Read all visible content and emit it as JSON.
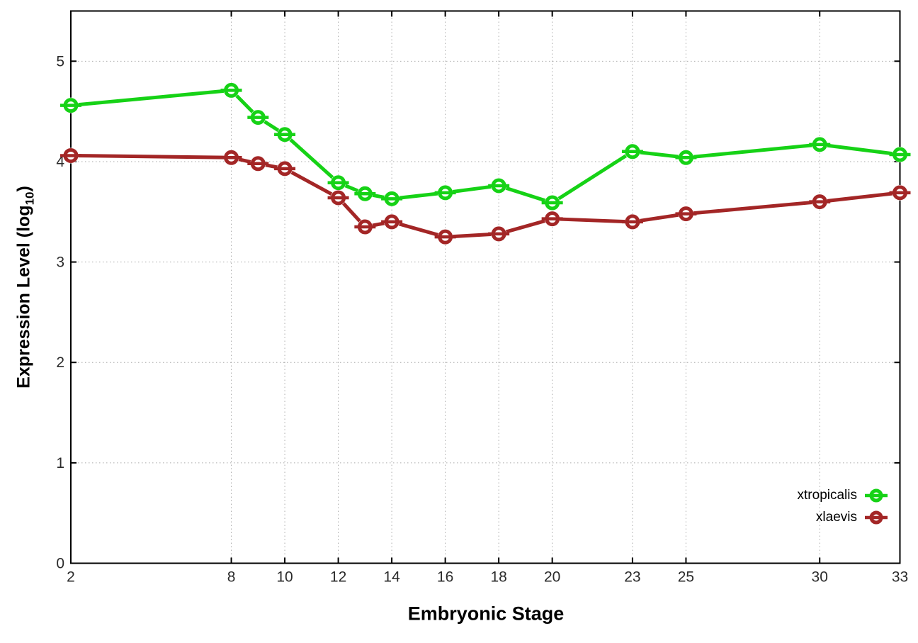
{
  "chart_data": {
    "type": "line",
    "title": "",
    "xlabel": "Embryonic Stage",
    "ylabel": "Expression Level (log10)",
    "ylabel_parts": {
      "prefix": "Expression Level (log",
      "sub": "10",
      "suffix": ")"
    },
    "x": [
      2,
      8,
      9,
      10,
      12,
      13,
      14,
      16,
      18,
      20,
      23,
      25,
      30,
      33
    ],
    "series": [
      {
        "name": "xtropicalis",
        "color": "#16d216",
        "values": [
          4.56,
          4.71,
          4.44,
          4.27,
          3.79,
          3.68,
          3.63,
          3.69,
          3.76,
          3.59,
          4.1,
          4.04,
          4.17,
          4.07
        ]
      },
      {
        "name": "xlaevis",
        "color": "#a32626",
        "values": [
          4.06,
          4.04,
          3.98,
          3.93,
          3.64,
          3.35,
          3.4,
          3.25,
          3.28,
          3.43,
          3.4,
          3.48,
          3.6,
          3.69
        ]
      }
    ],
    "xticks": [
      2,
      8,
      10,
      12,
      14,
      16,
      18,
      20,
      23,
      25,
      30,
      33
    ],
    "yticks": [
      0,
      1,
      2,
      3,
      4,
      5
    ],
    "xlim": [
      2,
      33
    ],
    "ylim": [
      0,
      5.5
    ],
    "grid": true,
    "marker": "open-circle-with-yerrorbar",
    "legend_position": "inside-bottom-right",
    "colors": {
      "background": "#ffffff",
      "axis": "#000000",
      "grid": "#aaaaaa",
      "tick_text": "#2b2b2b"
    }
  }
}
